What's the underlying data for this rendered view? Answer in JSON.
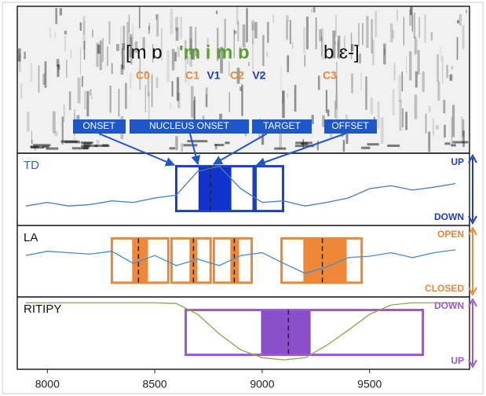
{
  "transcription": [
    {
      "text": "[m ɒ",
      "color": "#111111"
    },
    {
      "text": "'m i m ɒ",
      "color": "#5aa02c"
    },
    {
      "text": "b ɛ-]",
      "color": "#111111"
    }
  ],
  "segment_labels": [
    {
      "text": "C0",
      "color": "#e8893a"
    },
    {
      "text": "C1",
      "color": "#e8893a"
    },
    {
      "text": "V1",
      "color": "#1f3fbf"
    },
    {
      "text": "C2",
      "color": "#e8893a"
    },
    {
      "text": "V2",
      "color": "#1f3fbf"
    },
    {
      "text": "C3",
      "color": "#e8893a"
    }
  ],
  "callouts": [
    "ONSET",
    "NUCLEUS ONSET",
    "TARGET",
    "OFFSET"
  ],
  "chart_data": {
    "type": "gestural-score",
    "xlim": [
      7860,
      9965
    ],
    "xticks": [
      8000,
      8500,
      9000,
      9500
    ],
    "x": [
      7900,
      8000,
      8100,
      8200,
      8300,
      8400,
      8500,
      8600,
      8700,
      8800,
      8900,
      9000,
      9100,
      9200,
      9300,
      9400,
      9500,
      9600,
      9700,
      9800,
      9900
    ],
    "panels": [
      {
        "name": "TD",
        "label_color": "#3a5fcd",
        "color": "#1f3fbf",
        "fill": "#1133cc",
        "curve_color": "#4a7cc0",
        "top_label": "UP",
        "bottom_label": "DOWN",
        "ylim": [
          0,
          1
        ],
        "values": [
          0.27,
          0.32,
          0.27,
          0.29,
          0.34,
          0.32,
          0.38,
          0.42,
          0.75,
          0.82,
          0.51,
          0.32,
          0.34,
          0.27,
          0.32,
          0.38,
          0.51,
          0.55,
          0.49,
          0.53,
          0.58
        ],
        "gestures": [
          {
            "onset": 8600,
            "nucleus_onset": 8700,
            "target": 8760,
            "nucleus_offset": 8860,
            "offset": 8960
          },
          {
            "onset": 8969,
            "offset": 9097
          }
        ]
      },
      {
        "name": "LA",
        "label_color": "#111111",
        "color": "#e8893a",
        "fill": "#f0883a",
        "curve_color": "#4a8cc8",
        "top_label": "OPEN",
        "bottom_label": "CLOSED",
        "ylim": [
          0,
          1
        ],
        "values": [
          0.58,
          0.64,
          0.62,
          0.6,
          0.64,
          0.47,
          0.58,
          0.44,
          0.53,
          0.44,
          0.58,
          0.62,
          0.47,
          0.33,
          0.42,
          0.55,
          0.57,
          0.62,
          0.55,
          0.62,
          0.66
        ],
        "gestures": [
          {
            "onset": 8300,
            "nucleus_onset": 8391,
            "target": 8424,
            "nucleus_offset": 8472,
            "offset": 8563
          },
          {
            "onset": 8578,
            "nucleus_onset": 8658,
            "target": 8680,
            "nucleus_offset": 8702,
            "offset": 8760
          },
          {
            "onset": 8775,
            "nucleus_onset": 8848,
            "target": 8870,
            "nucleus_offset": 8896,
            "offset": 8951
          },
          {
            "onset": 9090,
            "nucleus_onset": 9188,
            "target": 9280,
            "nucleus_offset": 9397,
            "offset": 9463
          }
        ]
      },
      {
        "name": "RITIPY",
        "label_color": "#111111",
        "color": "#9b59d0",
        "fill": "#8a4fc8",
        "curve_color": "#8aa64a",
        "top_label": "DOWN",
        "bottom_label": "UP",
        "ylim": [
          0,
          1
        ],
        "values": [
          0.92,
          0.92,
          0.92,
          0.92,
          0.92,
          0.92,
          0.92,
          0.91,
          0.76,
          0.49,
          0.27,
          0.16,
          0.13,
          0.16,
          0.33,
          0.54,
          0.76,
          0.89,
          0.92,
          0.92,
          0.92
        ],
        "gestures": [
          {
            "onset": 8644,
            "nucleus_onset": 8991,
            "target": 9122,
            "nucleus_offset": 9229,
            "offset": 9748
          }
        ]
      }
    ]
  }
}
